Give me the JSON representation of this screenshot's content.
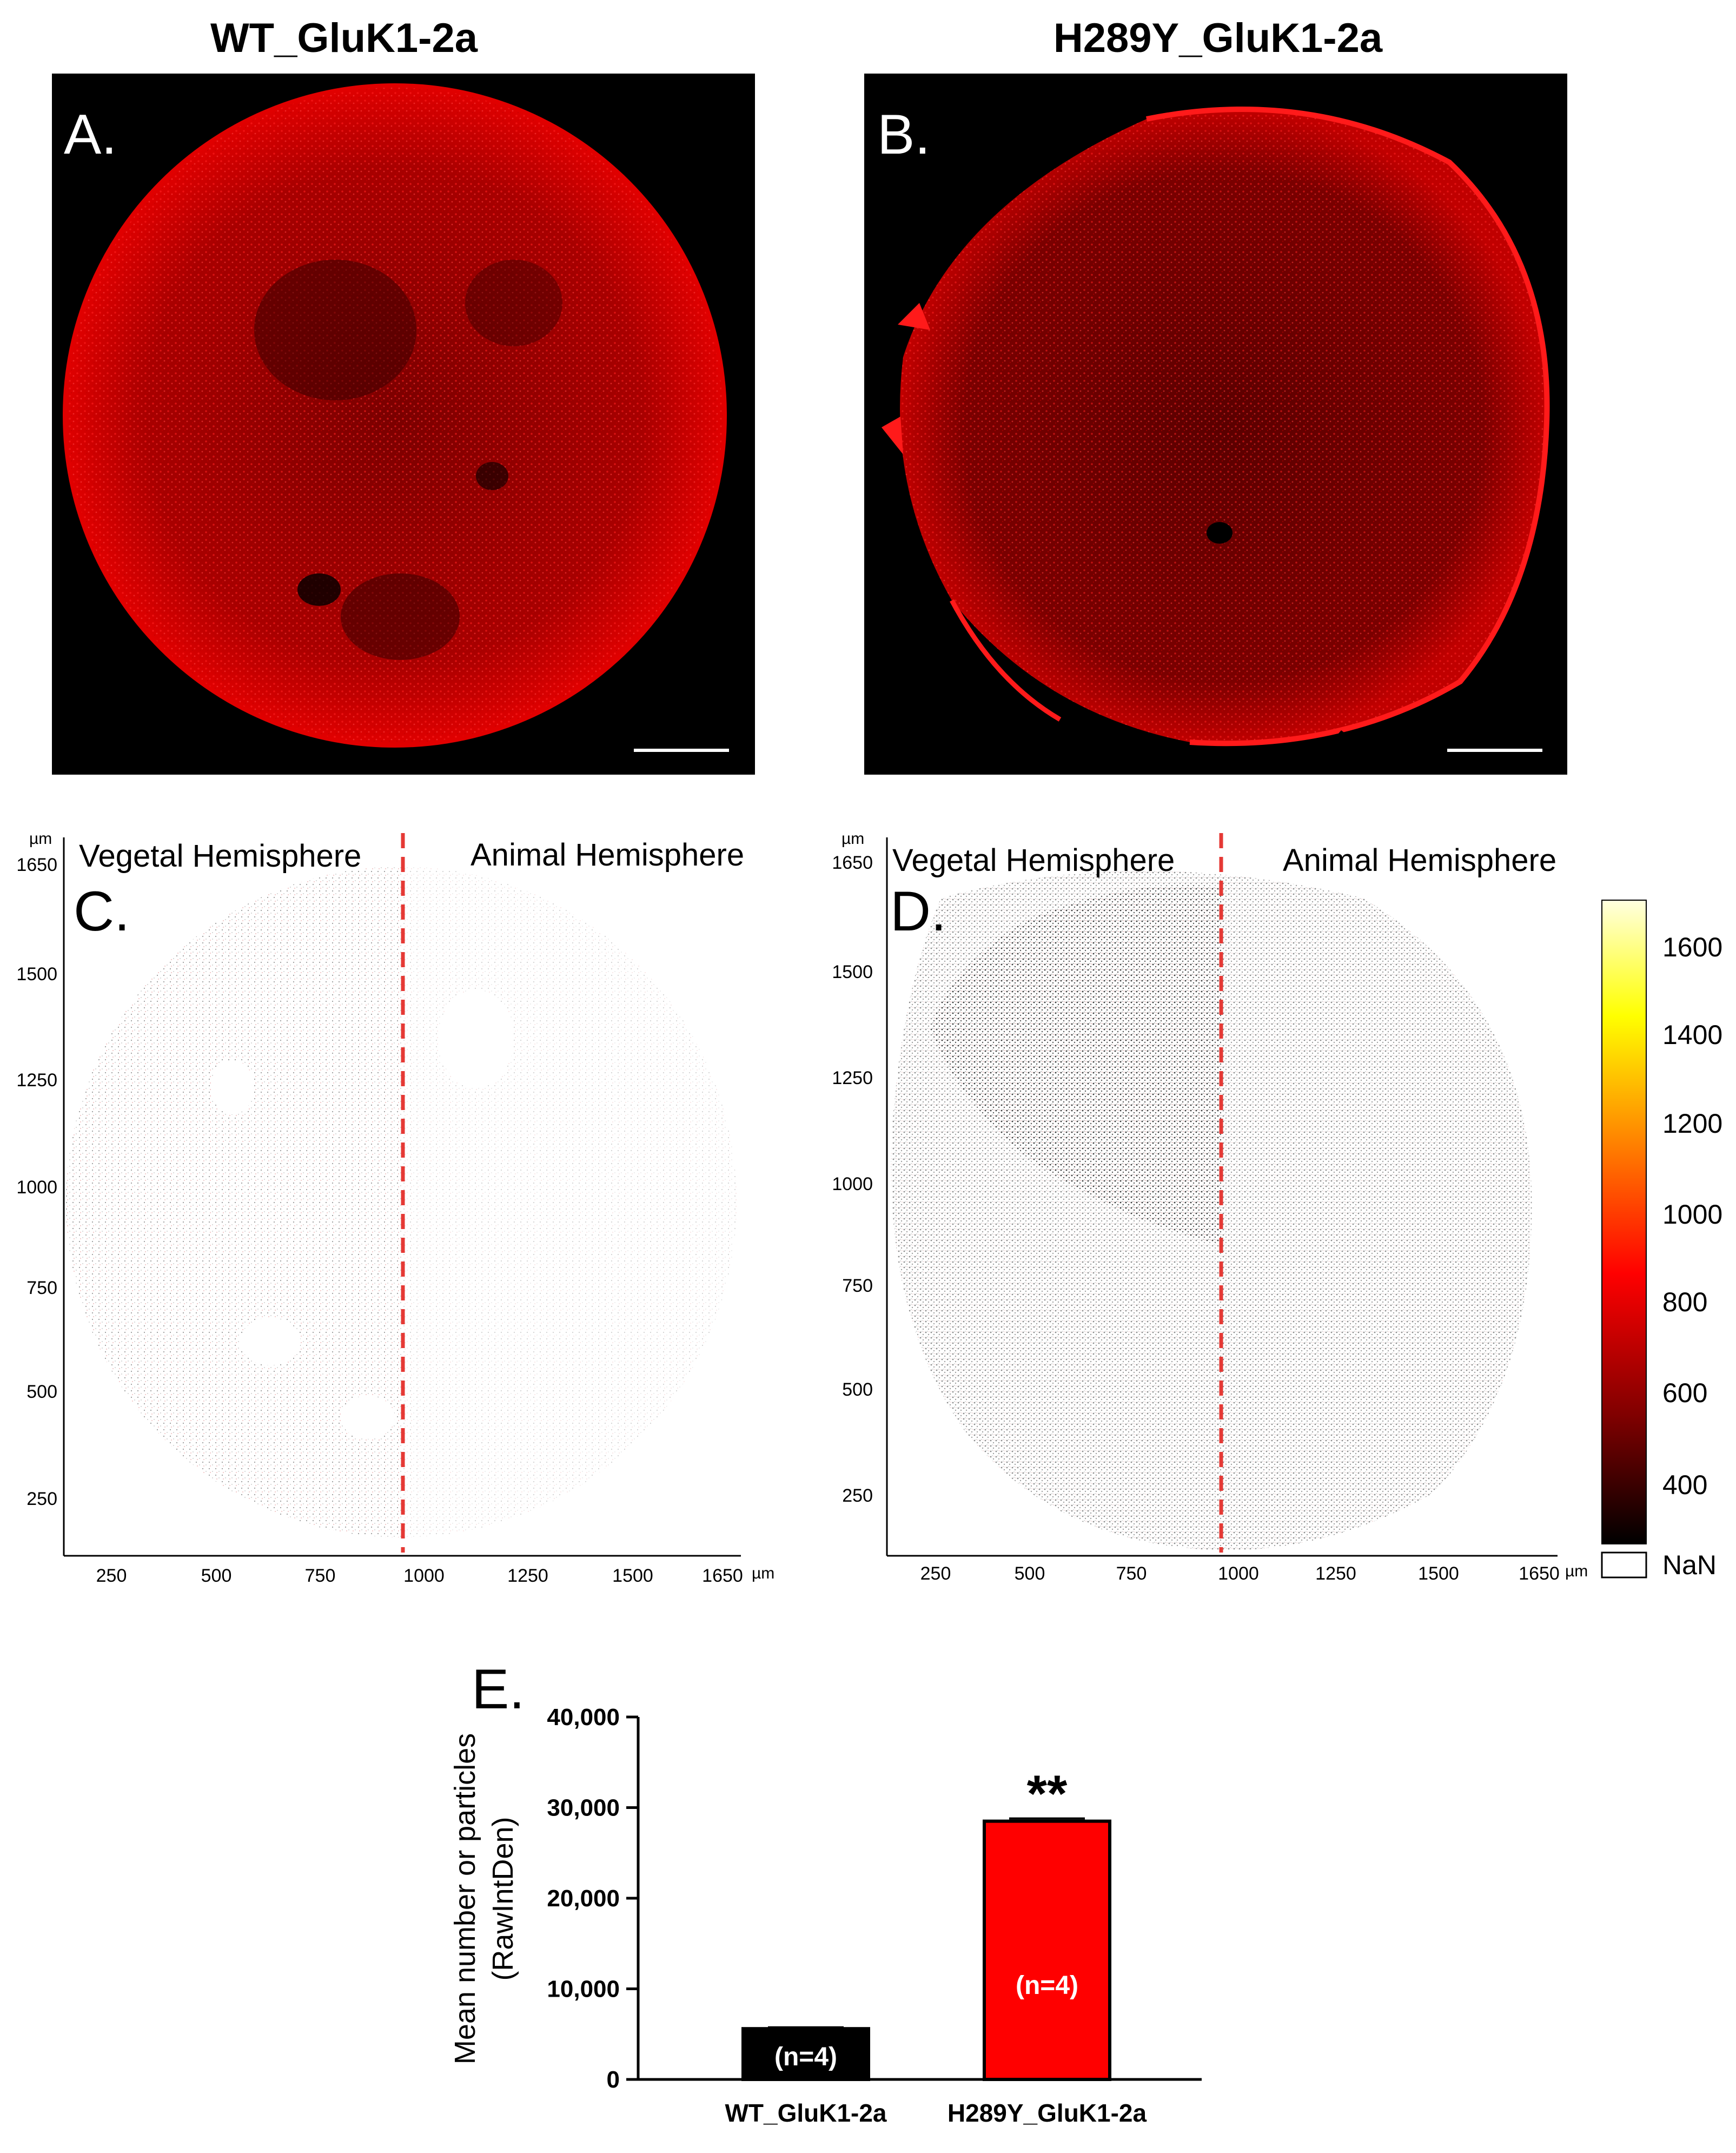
{
  "figure": {
    "col_titles": [
      "WT_GluK1-2a",
      "H289Y_GluK1-2a"
    ],
    "panels": {
      "A": {
        "letter": "A."
      },
      "B": {
        "letter": "B."
      },
      "C": {
        "letter": "C.",
        "left_label": "Vegetal Hemisphere",
        "right_label": "Animal Hemisphere",
        "x_ticks": [
          "250",
          "500",
          "750",
          "1000",
          "1250",
          "1500",
          "1650"
        ],
        "y_ticks": [
          "1650",
          "1500",
          "1250",
          "1000",
          "750",
          "500",
          "250"
        ],
        "unit": "µm"
      },
      "D": {
        "letter": "D.",
        "left_label": "Vegetal Hemisphere",
        "right_label": "Animal Hemisphere",
        "x_ticks": [
          "250",
          "500",
          "750",
          "1000",
          "1250",
          "1500",
          "1650"
        ],
        "y_ticks": [
          "1650",
          "1500",
          "1250",
          "1000",
          "750",
          "500",
          "250"
        ],
        "unit": "µm"
      },
      "E": {
        "letter": "E."
      }
    },
    "colorbar": {
      "ticks": [
        "1600",
        "1400",
        "1200",
        "1000",
        "800",
        "600",
        "400"
      ],
      "nan_label": "NaN",
      "colors": [
        "#000000",
        "#800000",
        "#ff0000",
        "#ff8000",
        "#ffff00",
        "#ffffe0"
      ]
    }
  },
  "chart_data": {
    "type": "bar",
    "categories": [
      "WT_GluK1-2a",
      "H289Y_GluK1-2a"
    ],
    "values": [
      5600,
      28500
    ],
    "errors": [
      150,
      300
    ],
    "bar_colors": [
      "#000000",
      "#ff0000"
    ],
    "bar_labels": [
      "(n=4)",
      "(n=4)"
    ],
    "significance": [
      "",
      "**"
    ],
    "ylabel_lines": [
      "Mean number or particles",
      "(RawIntDen)"
    ],
    "ylim": [
      0,
      40000
    ],
    "yticks": [
      0,
      10000,
      20000,
      30000,
      40000
    ],
    "ytick_labels": [
      "0",
      "10,000",
      "20,000",
      "30,000",
      "40,000"
    ]
  }
}
